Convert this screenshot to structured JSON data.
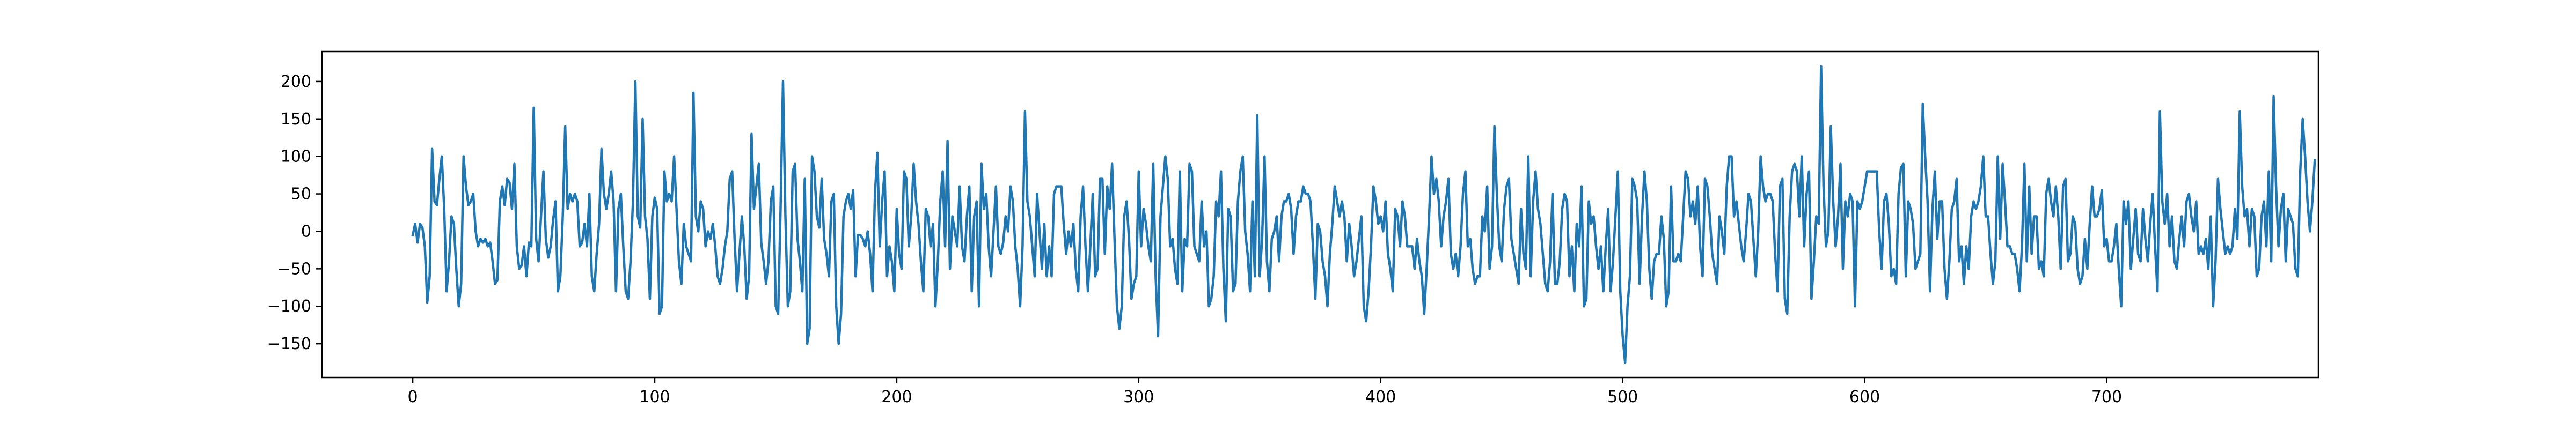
{
  "chart_data": {
    "type": "line",
    "title": "",
    "xlabel": "",
    "ylabel": "",
    "xlim": [
      -37.5,
      787.5
    ],
    "ylim": [
      -195,
      240
    ],
    "grid": false,
    "legend": "none",
    "x_ticks": [
      0,
      100,
      200,
      300,
      400,
      500,
      600,
      700
    ],
    "y_ticks": [
      -150,
      -100,
      -50,
      0,
      50,
      100,
      150,
      200
    ],
    "x_tick_labels": [
      "0",
      "100",
      "200",
      "300",
      "400",
      "500",
      "600",
      "700"
    ],
    "y_tick_labels": [
      "−150",
      "−100",
      "−50",
      "0",
      "50",
      "100",
      "150",
      "200"
    ],
    "series": [
      {
        "color": "#1f77b4",
        "x_start": 0,
        "x_step": 1,
        "values": [
          -5,
          10,
          -15,
          10,
          5,
          -20,
          -95,
          -60,
          110,
          40,
          35,
          70,
          100,
          30,
          -80,
          -40,
          20,
          10,
          -50,
          -100,
          -70,
          100,
          60,
          35,
          40,
          50,
          0,
          -20,
          -10,
          -15,
          -10,
          -20,
          -15,
          -40,
          -70,
          -65,
          40,
          60,
          35,
          70,
          65,
          30,
          90,
          -20,
          -50,
          -45,
          -20,
          -60,
          -15,
          -20,
          165,
          -10,
          -40,
          20,
          80,
          -10,
          -35,
          -20,
          15,
          40,
          -80,
          -60,
          20,
          140,
          30,
          50,
          40,
          50,
          40,
          -20,
          -15,
          10,
          -20,
          50,
          -60,
          -80,
          -30,
          10,
          110,
          50,
          30,
          50,
          80,
          40,
          -80,
          30,
          50,
          -20,
          -80,
          -90,
          -40,
          40,
          200,
          20,
          5,
          150,
          20,
          -10,
          -90,
          20,
          45,
          30,
          -110,
          -100,
          80,
          40,
          50,
          40,
          100,
          30,
          -40,
          -70,
          10,
          -20,
          -30,
          -40,
          185,
          20,
          0,
          40,
          30,
          -20,
          0,
          -10,
          10,
          -20,
          -60,
          -70,
          -50,
          -20,
          0,
          70,
          80,
          -10,
          -80,
          -30,
          20,
          -20,
          -90,
          -60,
          130,
          30,
          60,
          90,
          -15,
          -40,
          -70,
          -40,
          40,
          60,
          -100,
          -110,
          30,
          200,
          20,
          -100,
          -80,
          80,
          90,
          -10,
          -40,
          -80,
          70,
          -150,
          -130,
          100,
          80,
          20,
          5,
          70,
          -10,
          -30,
          -60,
          40,
          50,
          -100,
          -150,
          -110,
          20,
          40,
          50,
          30,
          55,
          -60,
          -5,
          -5,
          -10,
          -20,
          0,
          -30,
          -80,
          50,
          105,
          -20,
          40,
          80,
          -60,
          -20,
          -40,
          -80,
          30,
          -30,
          -50,
          80,
          70,
          -20,
          20,
          90,
          40,
          10,
          -40,
          -80,
          30,
          20,
          -20,
          10,
          -100,
          -40,
          40,
          80,
          -20,
          120,
          -50,
          20,
          0,
          -20,
          60,
          -20,
          -40,
          20,
          60,
          -80,
          20,
          40,
          -100,
          90,
          30,
          50,
          -20,
          -60,
          0,
          60,
          -20,
          -30,
          -15,
          20,
          0,
          60,
          40,
          -20,
          -50,
          -100,
          -20,
          160,
          40,
          20,
          -20,
          -60,
          50,
          0,
          -50,
          10,
          -60,
          -20,
          -60,
          50,
          60,
          60,
          60,
          10,
          -30,
          0,
          -20,
          10,
          -50,
          -80,
          20,
          60,
          -20,
          -80,
          -20,
          50,
          -60,
          -50,
          70,
          70,
          -30,
          60,
          30,
          90,
          -10,
          -100,
          -130,
          -100,
          20,
          40,
          -10,
          -90,
          -70,
          -60,
          80,
          -20,
          30,
          10,
          -20,
          -40,
          90,
          -60,
          -140,
          20,
          60,
          100,
          70,
          -20,
          -10,
          -50,
          -70,
          80,
          -80,
          -10,
          -20,
          90,
          80,
          -20,
          -30,
          -40,
          40,
          -20,
          0,
          -100,
          -90,
          -60,
          40,
          20,
          80,
          -50,
          -120,
          30,
          20,
          -80,
          -70,
          40,
          80,
          100,
          0,
          -30,
          -80,
          40,
          -60,
          155,
          -60,
          -10,
          100,
          -40,
          -80,
          -10,
          0,
          20,
          -40,
          20,
          40,
          40,
          50,
          30,
          -30,
          20,
          40,
          40,
          60,
          50,
          50,
          40,
          -20,
          -90,
          10,
          0,
          -40,
          -60,
          -100,
          -30,
          10,
          60,
          40,
          20,
          40,
          20,
          -40,
          10,
          -20,
          -60,
          -40,
          -10,
          20,
          -100,
          -120,
          -80,
          -20,
          60,
          40,
          10,
          20,
          0,
          40,
          -30,
          -50,
          -80,
          30,
          20,
          -20,
          40,
          20,
          -20,
          -20,
          -20,
          -50,
          -10,
          -40,
          -60,
          -110,
          -50,
          20,
          100,
          50,
          70,
          40,
          -20,
          20,
          40,
          70,
          -30,
          -50,
          -30,
          -60,
          -20,
          50,
          80,
          -20,
          -10,
          -50,
          -70,
          -60,
          -60,
          20,
          0,
          60,
          -50,
          -20,
          140,
          50,
          -20,
          -40,
          30,
          60,
          70,
          -10,
          -30,
          -50,
          -70,
          30,
          -30,
          -50,
          100,
          -60,
          40,
          80,
          30,
          10,
          -30,
          -70,
          -80,
          -40,
          50,
          -70,
          -70,
          -40,
          30,
          50,
          40,
          -60,
          -20,
          -80,
          10,
          -20,
          60,
          -100,
          -90,
          40,
          10,
          20,
          -20,
          -50,
          -20,
          -80,
          -20,
          30,
          -80,
          -40,
          20,
          80,
          -80,
          -140,
          -175,
          -100,
          -60,
          70,
          60,
          40,
          -70,
          20,
          80,
          40,
          -50,
          -90,
          -40,
          -30,
          -30,
          20,
          -10,
          -100,
          -80,
          60,
          -40,
          -40,
          -30,
          -40,
          20,
          80,
          70,
          20,
          40,
          10,
          60,
          -20,
          -60,
          70,
          60,
          20,
          -30,
          -50,
          -70,
          20,
          0,
          -30,
          60,
          100,
          100,
          20,
          40,
          10,
          -20,
          -40,
          0,
          50,
          40,
          -10,
          -60,
          0,
          100,
          60,
          40,
          50,
          50,
          40,
          -30,
          -80,
          60,
          70,
          -90,
          -110,
          20,
          80,
          90,
          80,
          20,
          100,
          -20,
          50,
          80,
          -90,
          -40,
          20,
          10,
          220,
          60,
          -20,
          0,
          140,
          40,
          -20,
          20,
          90,
          -50,
          40,
          20,
          50,
          40,
          -100,
          40,
          30,
          40,
          60,
          80,
          80,
          80,
          80,
          80,
          0,
          -50,
          40,
          50,
          10,
          -60,
          -50,
          -70,
          50,
          85,
          90,
          -60,
          40,
          30,
          10,
          -50,
          -40,
          -30,
          170,
          100,
          40,
          -80,
          30,
          80,
          -10,
          40,
          40,
          -50,
          -90,
          -40,
          30,
          40,
          70,
          -40,
          -20,
          -70,
          -20,
          -50,
          20,
          40,
          30,
          40,
          60,
          100,
          20,
          20,
          -30,
          -70,
          -40,
          100,
          -10,
          90,
          40,
          -20,
          -20,
          -30,
          -30,
          -50,
          -80,
          -20,
          90,
          -40,
          60,
          -30,
          20,
          20,
          -50,
          -40,
          -60,
          50,
          70,
          40,
          20,
          60,
          20,
          -50,
          60,
          70,
          -40,
          -30,
          20,
          10,
          -50,
          -70,
          -60,
          -10,
          -50,
          10,
          60,
          20,
          20,
          30,
          55,
          -20,
          -10,
          -40,
          -40,
          -20,
          10,
          -50,
          -100,
          40,
          10,
          40,
          -50,
          -10,
          30,
          -30,
          -40,
          30,
          -10,
          -40,
          10,
          50,
          -20,
          -80,
          160,
          40,
          10,
          50,
          -20,
          20,
          -40,
          -50,
          -10,
          20,
          -20,
          40,
          50,
          20,
          0,
          40,
          -30,
          -20,
          -30,
          -10,
          -50,
          20,
          -100,
          -40,
          70,
          30,
          0,
          -30,
          -20,
          -30,
          -20,
          30,
          -10,
          160,
          60,
          20,
          30,
          -20,
          30,
          20,
          -60,
          -50,
          20,
          40,
          -20,
          80,
          -40,
          180,
          60,
          -20,
          30,
          50,
          -40,
          30,
          20,
          10,
          -50,
          -60,
          80,
          150,
          100,
          40,
          0,
          40,
          95
        ]
      }
    ]
  }
}
